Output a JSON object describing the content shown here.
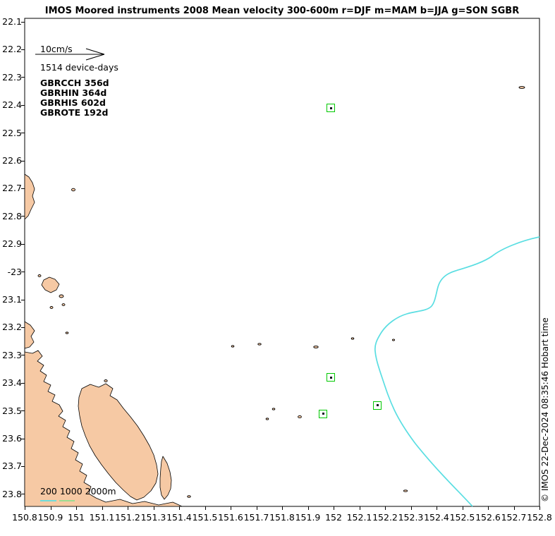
{
  "title": "IMOS Moored instruments 2008 Mean velocity 300-600m r=DJF m=MAM b=JJA g=SON SGBR",
  "annotations": {
    "scale_label": "10cm/s",
    "device_days": "1514 device-days",
    "depth_legend": "200 1000 2000m",
    "copyright": "© IMOS 22-Dec-2024 08:35:46 Hobart time"
  },
  "stations": [
    {
      "label": "GBRCCH 356d"
    },
    {
      "label": "GBRHIN 364d"
    },
    {
      "label": "GBRHIS 602d"
    },
    {
      "label": "GBROTE 192d"
    }
  ],
  "chart_data": {
    "type": "scatter",
    "title": "IMOS Moored instruments 2008 Mean velocity 300-600m r=DJF m=MAM b=JJA g=SON SGBR",
    "region": "SGBR",
    "season_codes": {
      "r": "DJF",
      "m": "MAM",
      "b": "JJA",
      "g": "SON"
    },
    "scale_cm_per_s": 10,
    "total_device_days": 1514,
    "xlim": [
      150.8,
      152.8
    ],
    "ylim": [
      -23.8,
      -22.1
    ],
    "x_ticks": [
      "150.8",
      "150.9",
      "151",
      "151.1",
      "151.2",
      "151.3",
      "151.4",
      "151.5",
      "151.6",
      "151.7",
      "151.8",
      "151.9",
      "152",
      "152.1",
      "152.2",
      "152.3",
      "152.4",
      "152.5",
      "152.6",
      "152.7",
      "152.8"
    ],
    "y_ticks": [
      "22.1",
      "22.2",
      "22.3",
      "22.4",
      "22.5",
      "22.6",
      "22.7",
      "22.8",
      "22.9",
      "-23",
      "23.1",
      "23.2",
      "23.3",
      "23.4",
      "23.5",
      "23.6",
      "23.7",
      "23.8"
    ],
    "moorings": [
      {
        "name": "GBRCCH",
        "device_days": 356,
        "lon": 151.99,
        "lat": -22.41
      },
      {
        "name": "GBRHIN",
        "device_days": 364,
        "lon": 151.99,
        "lat": -23.38
      },
      {
        "name": "GBRHIS",
        "device_days": 602,
        "lon": 151.96,
        "lat": -23.51
      },
      {
        "name": "GBROTE",
        "device_days": 192,
        "lon": 152.17,
        "lat": -23.48
      }
    ],
    "colors": {
      "land": "#F6C9A4",
      "shelf_contour": "#5ADEE2",
      "depth_1000m": "#8FDE8F",
      "marker": "#00C800"
    },
    "grid": false,
    "legend_position": "top-left"
  }
}
